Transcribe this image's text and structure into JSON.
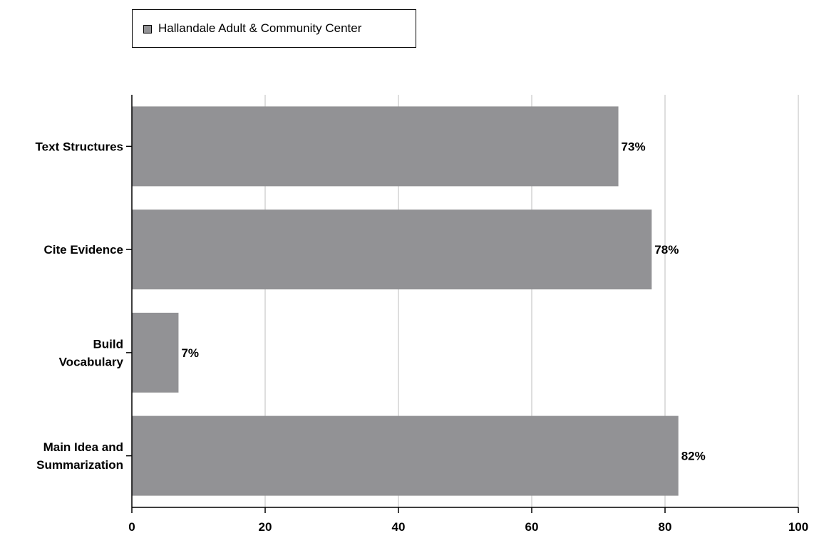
{
  "chart_data": {
    "type": "bar",
    "orientation": "horizontal",
    "categories": [
      "Text Structures",
      "Cite Evidence",
      "Build Vocabulary",
      "Main Idea and Summarization"
    ],
    "category_lines": [
      [
        "Text Structures"
      ],
      [
        "Cite Evidence"
      ],
      [
        "Build",
        "Vocabulary"
      ],
      [
        "Main Idea and",
        "Summarization"
      ]
    ],
    "series": [
      {
        "name": "Hallandale Adult & Community Center",
        "values": [
          73,
          78,
          7,
          82
        ],
        "labels": [
          "73%",
          "78%",
          "7%",
          "82%"
        ],
        "color": "#929295"
      }
    ],
    "xlim": [
      0,
      100
    ],
    "xticks": [
      0,
      20,
      40,
      60,
      80,
      100
    ],
    "grid": "vertical",
    "legend": "top-left",
    "title": "",
    "xlabel": "",
    "ylabel": ""
  }
}
